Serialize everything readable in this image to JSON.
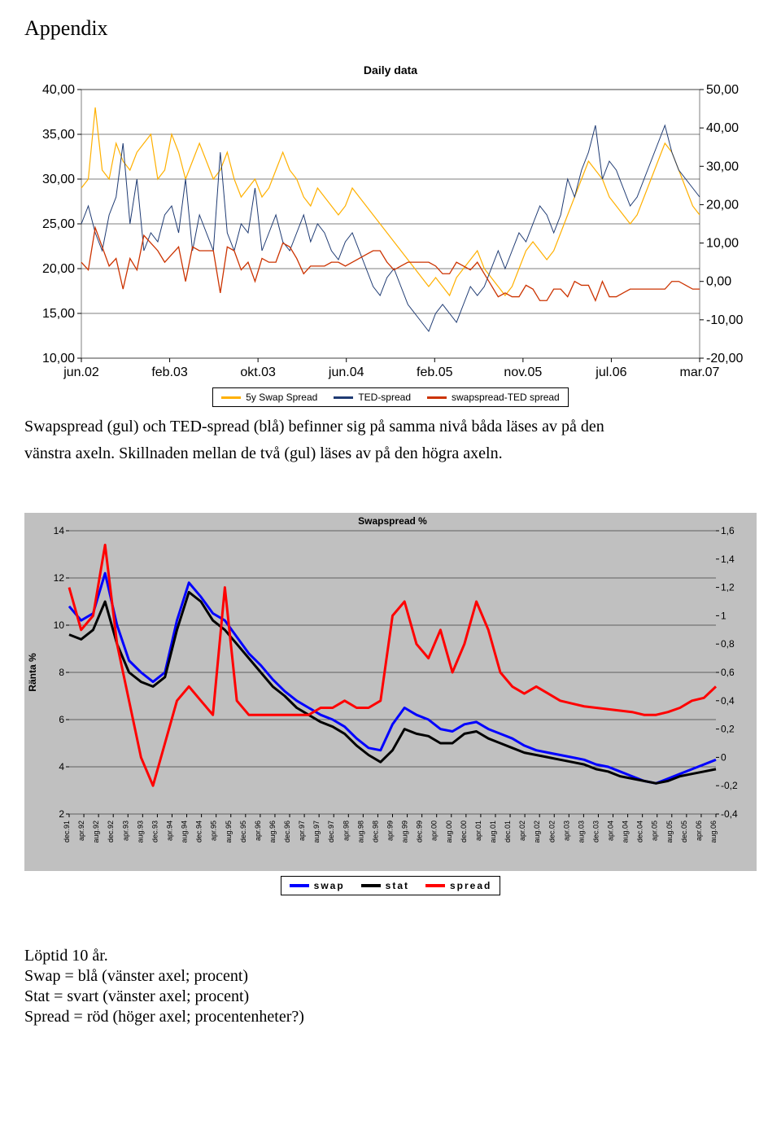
{
  "appendix_heading": "Appendix",
  "chart1": {
    "title": "Daily data",
    "type": "line",
    "background_color": "#ffffff",
    "grid_color": "#000000",
    "plot_border_color": "#808080",
    "left_axis": {
      "min": 10,
      "max": 40,
      "step": 5,
      "ticks": [
        "40,00",
        "35,00",
        "30,00",
        "25,00",
        "20,00",
        "15,00",
        "10,00"
      ],
      "fontsize": 16
    },
    "right_axis": {
      "min": -20,
      "max": 50,
      "step": 10,
      "ticks": [
        "50,00",
        "40,00",
        "30,00",
        "20,00",
        "10,00",
        "0,00",
        "-10,00",
        "-20,00"
      ],
      "fontsize": 16
    },
    "x_axis": {
      "labels": [
        "jun.02",
        "feb.03",
        "okt.03",
        "jun.04",
        "feb.05",
        "nov.05",
        "jul.06",
        "mar.07"
      ],
      "fontsize": 16
    },
    "series": [
      {
        "name": "5y Swap Spread",
        "axis": "left",
        "color": "#ffb000",
        "line_width": 1.2,
        "data": [
          29,
          30,
          38,
          31,
          30,
          34,
          32,
          31,
          33,
          34,
          35,
          30,
          31,
          35,
          33,
          30,
          32,
          34,
          32,
          30,
          31,
          33,
          30,
          28,
          29,
          30,
          28,
          29,
          31,
          33,
          31,
          30,
          28,
          27,
          29,
          28,
          27,
          26,
          27,
          29,
          28,
          27,
          26,
          25,
          24,
          23,
          22,
          21,
          20,
          19,
          18,
          19,
          18,
          17,
          19,
          20,
          21,
          22,
          20,
          19,
          18,
          17,
          18,
          20,
          22,
          23,
          22,
          21,
          22,
          24,
          26,
          28,
          30,
          32,
          31,
          30,
          28,
          27,
          26,
          25,
          26,
          28,
          30,
          32,
          34,
          33,
          31,
          29,
          27,
          26
        ]
      },
      {
        "name": "TED-spread",
        "axis": "left",
        "color": "#1f3b73",
        "line_width": 1.0,
        "data": [
          25,
          27,
          24,
          22,
          26,
          28,
          34,
          25,
          30,
          22,
          24,
          23,
          26,
          27,
          24,
          30,
          22,
          26,
          24,
          22,
          33,
          24,
          22,
          25,
          24,
          29,
          22,
          24,
          26,
          23,
          22,
          24,
          26,
          23,
          25,
          24,
          22,
          21,
          23,
          24,
          22,
          20,
          18,
          17,
          19,
          20,
          18,
          16,
          15,
          14,
          13,
          15,
          16,
          15,
          14,
          16,
          18,
          17,
          18,
          20,
          22,
          20,
          22,
          24,
          23,
          25,
          27,
          26,
          24,
          26,
          30,
          28,
          31,
          33,
          36,
          30,
          32,
          31,
          29,
          27,
          28,
          30,
          32,
          34,
          36,
          33,
          31,
          30,
          29,
          28
        ]
      },
      {
        "name": "swapspread-TED spread",
        "axis": "right",
        "color": "#cc3300",
        "line_width": 1.3,
        "data": [
          5,
          3,
          14,
          9,
          4,
          6,
          -2,
          6,
          3,
          12,
          10,
          8,
          5,
          7,
          9,
          0,
          9,
          8,
          8,
          8,
          -3,
          9,
          8,
          3,
          5,
          0,
          6,
          5,
          5,
          10,
          9,
          6,
          2,
          4,
          4,
          4,
          5,
          5,
          4,
          5,
          6,
          7,
          8,
          8,
          5,
          3,
          4,
          5,
          5,
          5,
          5,
          4,
          2,
          2,
          5,
          4,
          3,
          5,
          2,
          -1,
          -4,
          -3,
          -4,
          -4,
          -1,
          -2,
          -5,
          -5,
          -2,
          -2,
          -4,
          0,
          -1,
          -1,
          -5,
          0,
          -4,
          -4,
          -3,
          -2,
          -2,
          -2,
          -2,
          -2,
          -2,
          0,
          0,
          -1,
          -2,
          -2
        ]
      }
    ],
    "legend": {
      "items": [
        "5y Swap Spread",
        "TED-spread",
        "swapspread-TED spread"
      ],
      "border_color": "#000000"
    }
  },
  "caption1_line1": "Swapspread (gul) och TED-spread (blå) befinner sig på samma nivå båda läses av på den",
  "caption1_line2": "vänstra axeln. Skillnaden mellan de två (gul) läses av på den högra axeln.",
  "chart2": {
    "title": "Swapspread %",
    "ylabel": "Ränta %",
    "type": "line",
    "background_color": "#c0c0c0",
    "grid_color": "#000000",
    "plot_bg": "#c0c0c0",
    "left_axis": {
      "min": 2,
      "max": 14,
      "step": 2,
      "ticks": [
        "14",
        "12",
        "10",
        "8",
        "6",
        "4",
        "2"
      ],
      "fontsize": 12
    },
    "right_axis": {
      "min": -0.4,
      "max": 1.6,
      "step": 0.2,
      "ticks": [
        "1,6",
        "1,4",
        "1,2",
        "1",
        "0,8",
        "0,6",
        "0,4",
        "0,2",
        "0",
        "-0,2",
        "-0,4"
      ],
      "fontsize": 12
    },
    "x_axis": {
      "labels": [
        "dec.91",
        "apr.92",
        "aug.92",
        "dec.92",
        "apr.93",
        "aug.93",
        "dec.93",
        "apr.94",
        "aug.94",
        "dec.94",
        "apr.95",
        "aug.95",
        "dec.95",
        "apr.96",
        "aug.96",
        "dec.96",
        "apr.97",
        "aug.97",
        "dec.97",
        "apr.98",
        "aug.98",
        "dec.98",
        "apr.99",
        "aug.99",
        "dec.99",
        "apr.00",
        "aug.00",
        "dec.00",
        "apr.01",
        "aug.01",
        "dec.01",
        "apr.02",
        "aug.02",
        "dec.02",
        "apr.03",
        "aug.03",
        "dec.03",
        "apr.04",
        "aug.04",
        "dec.04",
        "apr.05",
        "aug.05",
        "dec.05",
        "apr.06",
        "aug.06"
      ],
      "fontsize": 9,
      "rotate": -90
    },
    "series": [
      {
        "name": "swap",
        "axis": "left",
        "color": "#0000ff",
        "line_width": 3,
        "data": [
          10.8,
          10.2,
          10.5,
          12.2,
          10.0,
          8.5,
          8.0,
          7.6,
          8.0,
          10.2,
          11.8,
          11.2,
          10.5,
          10.2,
          9.5,
          8.8,
          8.3,
          7.7,
          7.2,
          6.8,
          6.5,
          6.2,
          6.0,
          5.7,
          5.2,
          4.8,
          4.7,
          5.8,
          6.5,
          6.2,
          6.0,
          5.6,
          5.5,
          5.8,
          5.9,
          5.6,
          5.4,
          5.2,
          4.9,
          4.7,
          4.6,
          4.5,
          4.4,
          4.3,
          4.1,
          4.0,
          3.8,
          3.6,
          3.4,
          3.3,
          3.5,
          3.7,
          3.9,
          4.1,
          4.3
        ]
      },
      {
        "name": "stat",
        "axis": "left",
        "color": "#000000",
        "line_width": 3,
        "data": [
          9.6,
          9.4,
          9.8,
          11.0,
          9.2,
          8.0,
          7.6,
          7.4,
          7.8,
          9.8,
          11.4,
          11.0,
          10.2,
          9.8,
          9.2,
          8.6,
          8.0,
          7.4,
          7.0,
          6.5,
          6.2,
          5.9,
          5.7,
          5.4,
          4.9,
          4.5,
          4.2,
          4.7,
          5.6,
          5.4,
          5.3,
          5.0,
          5.0,
          5.4,
          5.5,
          5.2,
          5.0,
          4.8,
          4.6,
          4.5,
          4.4,
          4.3,
          4.2,
          4.1,
          3.9,
          3.8,
          3.6,
          3.5,
          3.4,
          3.3,
          3.4,
          3.6,
          3.7,
          3.8,
          3.9
        ]
      },
      {
        "name": "spread",
        "axis": "right",
        "color": "#ff0000",
        "line_width": 3,
        "data": [
          1.2,
          0.9,
          1.0,
          1.5,
          0.8,
          0.4,
          0.0,
          -0.2,
          0.1,
          0.4,
          0.5,
          0.4,
          0.3,
          1.2,
          0.4,
          0.3,
          0.3,
          0.3,
          0.3,
          0.3,
          0.3,
          0.35,
          0.35,
          0.4,
          0.35,
          0.35,
          0.4,
          1.0,
          1.1,
          0.8,
          0.7,
          0.9,
          0.6,
          0.8,
          1.1,
          0.9,
          0.6,
          0.5,
          0.45,
          0.5,
          0.45,
          0.4,
          0.38,
          0.36,
          0.35,
          0.34,
          0.33,
          0.32,
          0.3,
          0.3,
          0.32,
          0.35,
          0.4,
          0.42,
          0.5
        ]
      }
    ],
    "legend": {
      "items": [
        "swap",
        "stat",
        "spread"
      ],
      "border_color": "#000000",
      "spacing_label_style": "spaced"
    }
  },
  "para2_line1": "Löptid 10 år.",
  "para2_line2": "Swap = blå (vänster axel; procent)",
  "para2_line3": "Stat = svart (vänster axel; procent)",
  "para2_line4": "Spread = röd (höger axel; procentenheter?)"
}
